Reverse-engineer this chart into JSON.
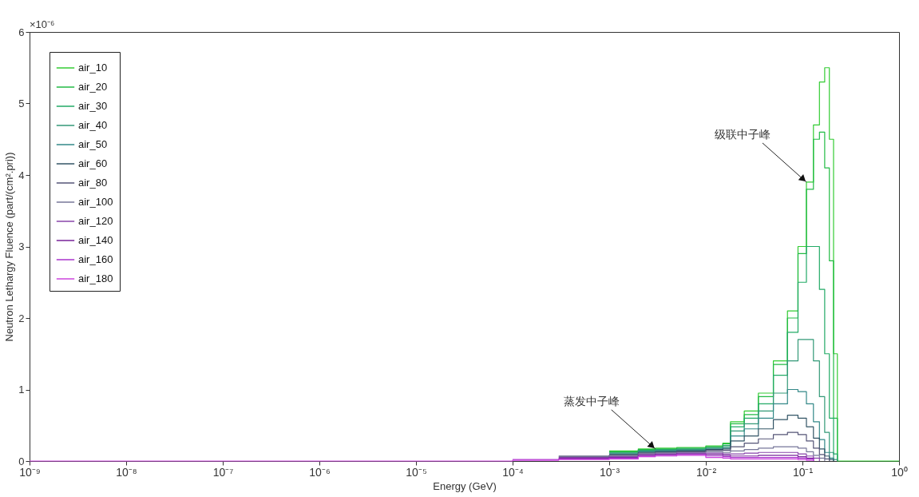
{
  "chart_data": {
    "type": "step",
    "xlabel": "Energy (GeV)",
    "ylabel": "Neutron Lethargy Fluence (part/(cm².pri))",
    "log": "x",
    "grid": false,
    "legend": "top left",
    "marker": "none",
    "line_style": "solid",
    "xlim": [
      1e-09,
      1
    ],
    "xticks": [
      {
        "value": 1e-09,
        "label": "10⁻⁹"
      },
      {
        "value": 1e-08,
        "label": "10⁻⁸"
      },
      {
        "value": 1e-07,
        "label": "10⁻⁷"
      },
      {
        "value": 1e-06,
        "label": "10⁻⁶"
      },
      {
        "value": 1e-05,
        "label": "10⁻⁵"
      },
      {
        "value": 0.0001,
        "label": "10⁻⁴"
      },
      {
        "value": 0.001,
        "label": "10⁻³"
      },
      {
        "value": 0.01,
        "label": "10⁻²"
      },
      {
        "value": 0.1,
        "label": "10⁻¹"
      },
      {
        "value": 1,
        "label": "10⁰"
      }
    ],
    "ylim": [
      0,
      6
    ],
    "yticks": [
      0,
      1,
      2,
      3,
      4,
      5,
      6
    ],
    "annotations": [
      "×10⁻⁶",
      {
        "text": "级联中子峰",
        "x": 0.11,
        "y": 3.9
      },
      {
        "text": "蒸发中子峰",
        "x": 0.003,
        "y": 0.17
      }
    ],
    "x": [
      1e-09,
      1e-05,
      0.0001,
      0.0003,
      0.001,
      0.002,
      0.003,
      0.005,
      0.01,
      0.015,
      0.018,
      0.025,
      0.035,
      0.05,
      0.07,
      0.09,
      0.11,
      0.13,
      0.15,
      0.17,
      0.19,
      0.21,
      0.23,
      1
    ],
    "series": [
      {
        "name": "air_10",
        "color": "#33cc33",
        "values": [
          null,
          null,
          null,
          null,
          0.14,
          0.17,
          0.18,
          0.19,
          0.21,
          0.25,
          0.55,
          0.7,
          0.95,
          1.4,
          2.1,
          3.0,
          3.9,
          4.7,
          5.3,
          5.5,
          4.5,
          1.5,
          0,
          0
        ]
      },
      {
        "name": "air_20",
        "color": "#22bb44",
        "values": [
          null,
          null,
          null,
          null,
          0.13,
          0.16,
          0.17,
          0.18,
          0.2,
          0.24,
          0.52,
          0.65,
          0.9,
          1.35,
          2.0,
          2.9,
          3.8,
          4.5,
          4.6,
          4.1,
          2.8,
          0.6,
          0,
          null
        ]
      },
      {
        "name": "air_30",
        "color": "#22aa66",
        "values": [
          null,
          null,
          null,
          null,
          0.12,
          0.15,
          0.16,
          0.17,
          0.19,
          0.22,
          0.48,
          0.6,
          0.8,
          1.2,
          1.8,
          2.5,
          3.0,
          3.0,
          2.4,
          1.5,
          0.6,
          0.1,
          0,
          null
        ]
      },
      {
        "name": "air_40",
        "color": "#339977",
        "values": [
          null,
          null,
          null,
          null,
          0.11,
          0.14,
          0.15,
          0.16,
          0.18,
          0.2,
          0.42,
          0.52,
          0.7,
          0.95,
          1.4,
          1.7,
          1.7,
          1.4,
          0.9,
          0.4,
          0.12,
          0.02,
          0,
          null
        ]
      },
      {
        "name": "air_50",
        "color": "#338888",
        "values": [
          null,
          null,
          null,
          null,
          0.1,
          0.13,
          0.14,
          0.15,
          0.17,
          0.18,
          0.35,
          0.45,
          0.6,
          0.8,
          1.0,
          0.97,
          0.8,
          0.55,
          0.3,
          0.12,
          0.04,
          0,
          null,
          null
        ]
      },
      {
        "name": "air_60",
        "color": "#335566",
        "values": [
          null,
          null,
          null,
          null,
          0.09,
          0.12,
          0.13,
          0.14,
          0.16,
          0.17,
          0.28,
          0.35,
          0.45,
          0.58,
          0.64,
          0.6,
          0.48,
          0.32,
          0.17,
          0.07,
          0.02,
          0,
          null,
          null
        ]
      },
      {
        "name": "air_80",
        "color": "#555577",
        "values": [
          null,
          null,
          null,
          0.07,
          0.08,
          0.11,
          0.12,
          0.13,
          0.15,
          0.15,
          0.2,
          0.25,
          0.31,
          0.37,
          0.4,
          0.37,
          0.28,
          0.18,
          0.09,
          0.03,
          0,
          null,
          null,
          null
        ]
      },
      {
        "name": "air_100",
        "color": "#777799",
        "values": [
          null,
          null,
          null,
          0.06,
          0.07,
          0.1,
          0.11,
          0.12,
          0.13,
          0.12,
          0.14,
          0.16,
          0.18,
          0.2,
          0.2,
          0.18,
          0.13,
          0.08,
          0.04,
          0,
          null,
          null,
          null,
          null
        ]
      },
      {
        "name": "air_120",
        "color": "#8844aa",
        "values": [
          null,
          null,
          null,
          0.05,
          0.06,
          0.09,
          0.1,
          0.11,
          0.11,
          0.1,
          0.1,
          0.11,
          0.12,
          0.12,
          0.12,
          0.1,
          0.07,
          0.04,
          0,
          null,
          null,
          null,
          null,
          null
        ]
      },
      {
        "name": "air_140",
        "color": "#772299",
        "values": [
          null,
          null,
          null,
          0.04,
          0.05,
          0.08,
          0.09,
          0.1,
          0.09,
          0.08,
          0.07,
          0.07,
          0.08,
          0.08,
          0.08,
          0.06,
          0.04,
          0,
          null,
          null,
          null,
          null,
          null,
          null
        ]
      },
      {
        "name": "air_160",
        "color": "#aa33cc",
        "values": [
          null,
          null,
          0.02,
          0.03,
          0.04,
          0.07,
          0.08,
          0.09,
          0.07,
          0.06,
          0.05,
          0.05,
          0.05,
          0.05,
          0.05,
          0.04,
          0.03,
          0,
          null,
          null,
          null,
          null,
          null,
          null
        ]
      },
      {
        "name": "air_180",
        "color": "#cc44dd",
        "values": [
          0,
          0,
          0.01,
          0.02,
          0.03,
          0.06,
          0.07,
          0.08,
          0.05,
          0.04,
          0.03,
          0.03,
          0.03,
          0.03,
          0.03,
          0.02,
          0.01,
          0,
          null,
          null,
          null,
          null,
          null,
          null
        ]
      }
    ]
  }
}
